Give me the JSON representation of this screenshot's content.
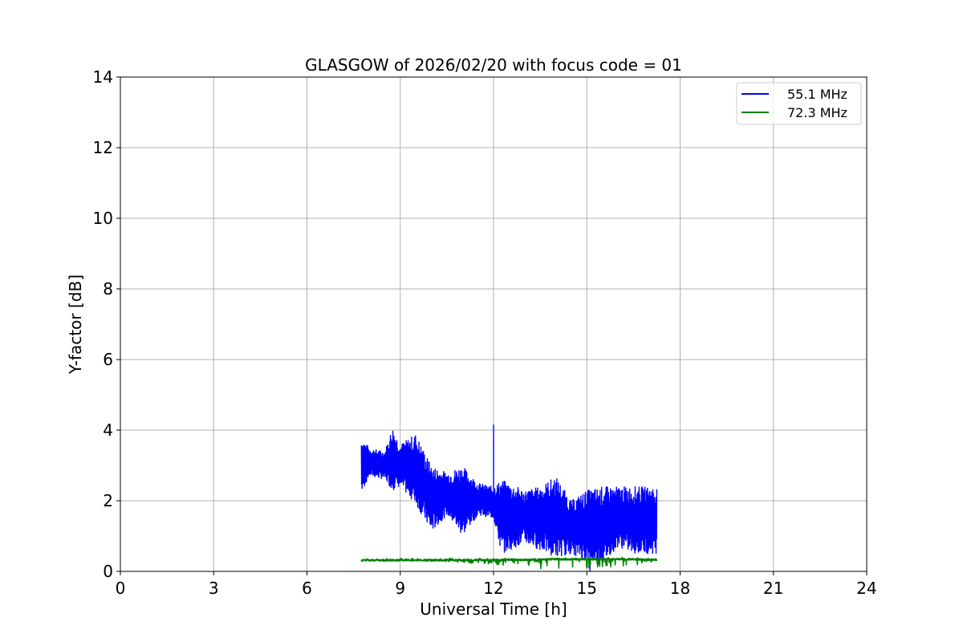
{
  "chart_data": {
    "type": "line",
    "title": "GLASGOW of 2026/02/20 with focus code = 01",
    "xlabel": "Universal Time [h]",
    "ylabel": "Y-factor [dB]",
    "xlim": [
      0,
      24
    ],
    "ylim": [
      0,
      14
    ],
    "xticks": [
      0,
      3,
      6,
      9,
      12,
      15,
      18,
      21,
      24
    ],
    "yticks": [
      0,
      2,
      4,
      6,
      8,
      10,
      12,
      14
    ],
    "grid": true,
    "legend": "top-right",
    "series": [
      {
        "name": "55.1 MHz",
        "color": "#0000ff",
        "x_range": [
          7.75,
          17.25
        ],
        "envelope": [
          {
            "x": 7.75,
            "low": 2.2,
            "high": 3.8
          },
          {
            "x": 8.0,
            "low": 2.7,
            "high": 3.5
          },
          {
            "x": 8.5,
            "low": 2.6,
            "high": 3.4
          },
          {
            "x": 8.75,
            "low": 2.3,
            "high": 4.1
          },
          {
            "x": 9.0,
            "low": 2.4,
            "high": 3.6
          },
          {
            "x": 9.5,
            "low": 1.9,
            "high": 3.9
          },
          {
            "x": 10.0,
            "low": 1.1,
            "high": 3.0
          },
          {
            "x": 10.5,
            "low": 1.6,
            "high": 2.8
          },
          {
            "x": 11.0,
            "low": 1.0,
            "high": 3.0
          },
          {
            "x": 11.5,
            "low": 1.6,
            "high": 2.5
          },
          {
            "x": 12.0,
            "low": 1.5,
            "high": 2.4
          },
          {
            "x": 12.25,
            "low": 0.5,
            "high": 2.6
          },
          {
            "x": 13.0,
            "low": 0.8,
            "high": 2.3
          },
          {
            "x": 13.5,
            "low": 0.6,
            "high": 2.4
          },
          {
            "x": 14.0,
            "low": 0.4,
            "high": 2.7
          },
          {
            "x": 14.5,
            "low": 0.5,
            "high": 2.0
          },
          {
            "x": 15.0,
            "low": 0.3,
            "high": 2.3
          },
          {
            "x": 15.5,
            "low": 0.2,
            "high": 2.4
          },
          {
            "x": 16.0,
            "low": 0.7,
            "high": 2.4
          },
          {
            "x": 16.5,
            "low": 0.5,
            "high": 2.4
          },
          {
            "x": 17.0,
            "low": 0.5,
            "high": 2.4
          },
          {
            "x": 17.25,
            "low": 0.5,
            "high": 2.4
          }
        ],
        "spikes": [
          {
            "x": 12.0,
            "y": 4.15
          },
          {
            "x": 15.1,
            "y": 0.0
          }
        ]
      },
      {
        "name": "72.3 MHz",
        "color": "#008000",
        "x_range": [
          7.75,
          17.25
        ],
        "envelope": [
          {
            "x": 7.75,
            "low": 0.3,
            "high": 0.37
          },
          {
            "x": 10.0,
            "low": 0.3,
            "high": 0.37
          },
          {
            "x": 12.5,
            "low": 0.15,
            "high": 0.38
          },
          {
            "x": 13.0,
            "low": 0.05,
            "high": 0.38
          },
          {
            "x": 14.0,
            "low": 0.1,
            "high": 0.4
          },
          {
            "x": 14.5,
            "low": 0.05,
            "high": 0.4
          },
          {
            "x": 15.5,
            "low": 0.1,
            "high": 0.4
          },
          {
            "x": 16.5,
            "low": 0.15,
            "high": 0.4
          },
          {
            "x": 17.25,
            "low": 0.3,
            "high": 0.38
          }
        ],
        "spikes": []
      }
    ]
  }
}
